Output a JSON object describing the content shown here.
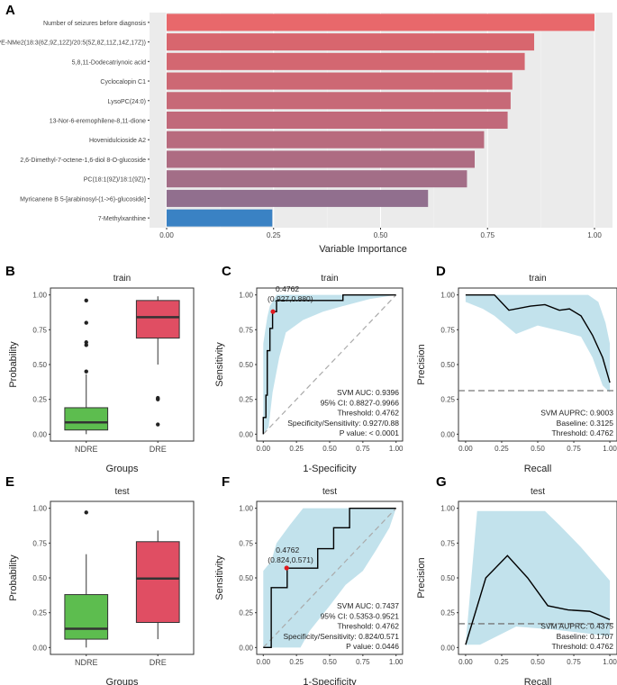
{
  "chart_data": [
    {
      "panel": "A",
      "type": "bar",
      "orientation": "horizontal",
      "title": "",
      "xlabel": "Variable Importance",
      "xlim": [
        0,
        1
      ],
      "xticks": [
        "0.00",
        "0.25",
        "0.50",
        "0.75",
        "1.00"
      ],
      "categories": [
        "Number of seizures before diagnosis",
        "PE-NMe2(18:3(6Z,9Z,12Z)/20:5(5Z,8Z,11Z,14Z,17Z))",
        "5,8,11-Dodecatriynoic acid",
        "Cyclocalopin C1",
        "LysoPC(24:0)",
        "13-Nor-6-eremophilene-8,11-dione",
        "Hovenidulcioside A2",
        "2,6-Dimethyl-7-octene-1,6-diol 8-O-glucoside",
        "PC(18:1(9Z)/18:1(9Z))",
        "Myricanene B 5-[arabinosyl-(1->6)-glucoside]",
        "7-Methylxanthine"
      ],
      "values": [
        1.0,
        0.859,
        0.837,
        0.808,
        0.804,
        0.797,
        0.742,
        0.72,
        0.702,
        0.611,
        0.247
      ],
      "colors": [
        "#e8686b",
        "#d8666e",
        "#d36771",
        "#cd6874",
        "#c76977",
        "#c1697a",
        "#b86b7e",
        "#ae6c82",
        "#a36e87",
        "#916f8e",
        "#3a82c4"
      ]
    },
    {
      "panel": "B",
      "type": "box",
      "title": "train",
      "xlabel": "Groups",
      "ylabel": "Probability",
      "ylim": [
        0,
        1
      ],
      "yticks": [
        "0.00",
        "0.25",
        "0.50",
        "0.75",
        "1.00"
      ],
      "groups": [
        {
          "name": "NDRE",
          "color": "#5dbd4f",
          "min": 0.0,
          "q1": 0.03,
          "median": 0.085,
          "q3": 0.19,
          "max": 0.43,
          "outliers": [
            0.45,
            0.64,
            0.66,
            0.8,
            0.96
          ]
        },
        {
          "name": "DRE",
          "color": "#e04e63",
          "min": 0.5,
          "q1": 0.69,
          "median": 0.84,
          "q3": 0.96,
          "max": 0.99,
          "outliers": [
            0.07,
            0.25,
            0.26
          ]
        }
      ]
    },
    {
      "panel": "C",
      "type": "roc",
      "title": "train",
      "xlabel": "1-Specificity",
      "ylabel": "Sensitivity",
      "xlim": [
        0,
        1
      ],
      "ylim": [
        0,
        1
      ],
      "ticks": [
        "0.00",
        "0.25",
        "0.50",
        "0.75",
        "1.00"
      ],
      "curve": [
        [
          0,
          0
        ],
        [
          0,
          0.12
        ],
        [
          0.02,
          0.12
        ],
        [
          0.02,
          0.28
        ],
        [
          0.03,
          0.28
        ],
        [
          0.03,
          0.6
        ],
        [
          0.05,
          0.6
        ],
        [
          0.05,
          0.76
        ],
        [
          0.07,
          0.76
        ],
        [
          0.07,
          0.88
        ],
        [
          0.1,
          0.88
        ],
        [
          0.1,
          0.96
        ],
        [
          0.6,
          0.96
        ],
        [
          0.6,
          1
        ],
        [
          1,
          1
        ]
      ],
      "band_upper": [
        [
          0,
          0.65
        ],
        [
          0.03,
          0.84
        ],
        [
          0.05,
          0.92
        ],
        [
          0.1,
          1
        ],
        [
          1,
          1
        ]
      ],
      "band_lower": [
        [
          0,
          0
        ],
        [
          0.04,
          0.05
        ],
        [
          0.07,
          0.3
        ],
        [
          0.12,
          0.55
        ],
        [
          0.17,
          0.73
        ],
        [
          0.3,
          0.82
        ],
        [
          0.45,
          0.88
        ],
        [
          0.6,
          0.92
        ],
        [
          0.8,
          0.97
        ],
        [
          1,
          1
        ]
      ],
      "cut_point": [
        0.073,
        0.88
      ],
      "cut_label_1": "0.4762",
      "cut_label_2": "(0.927,0.880)",
      "stats": [
        "SVM AUC: 0.9396",
        "95% CI: 0.8827-0.9966",
        "Threshold: 0.4762",
        "Specificity/Sensitivity: 0.927/0.88",
        "P value: < 0.0001"
      ]
    },
    {
      "panel": "D",
      "type": "pr",
      "title": "train",
      "xlabel": "Recall",
      "ylabel": "Precision",
      "xlim": [
        0,
        1
      ],
      "ylim": [
        0,
        1
      ],
      "ticks": [
        "0.00",
        "0.25",
        "0.50",
        "0.75",
        "1.00"
      ],
      "curve": [
        [
          0,
          1
        ],
        [
          0.2,
          1
        ],
        [
          0.3,
          0.89
        ],
        [
          0.45,
          0.92
        ],
        [
          0.55,
          0.93
        ],
        [
          0.65,
          0.89
        ],
        [
          0.72,
          0.9
        ],
        [
          0.8,
          0.85
        ],
        [
          0.88,
          0.71
        ],
        [
          0.95,
          0.55
        ],
        [
          1,
          0.37
        ]
      ],
      "band_upper": [
        [
          0,
          1
        ],
        [
          0.85,
          1
        ],
        [
          0.92,
          0.95
        ],
        [
          0.97,
          0.8
        ],
        [
          1,
          0.65
        ]
      ],
      "band_lower": [
        [
          1,
          0.3
        ],
        [
          0.95,
          0.35
        ],
        [
          0.88,
          0.55
        ],
        [
          0.8,
          0.7
        ],
        [
          0.7,
          0.73
        ],
        [
          0.5,
          0.78
        ],
        [
          0.35,
          0.72
        ],
        [
          0.2,
          0.85
        ],
        [
          0.12,
          0.9
        ],
        [
          0,
          0.95
        ]
      ],
      "baseline": 0.3125,
      "stats": [
        "SVM AUPRC: 0.9003",
        "Baseline: 0.3125",
        "Threshold: 0.4762"
      ]
    },
    {
      "panel": "E",
      "type": "box",
      "title": "test",
      "xlabel": "Groups",
      "ylabel": "Probability",
      "ylim": [
        0,
        1
      ],
      "yticks": [
        "0.00",
        "0.25",
        "0.50",
        "0.75",
        "1.00"
      ],
      "groups": [
        {
          "name": "NDRE",
          "color": "#5dbd4f",
          "min": 0.0,
          "q1": 0.06,
          "median": 0.135,
          "q3": 0.38,
          "max": 0.67,
          "outliers": [
            0.97
          ]
        },
        {
          "name": "DRE",
          "color": "#e04e63",
          "min": 0.06,
          "q1": 0.18,
          "median": 0.495,
          "q3": 0.76,
          "max": 0.84,
          "outliers": []
        }
      ]
    },
    {
      "panel": "F",
      "type": "roc",
      "title": "test",
      "xlabel": "1-Specificity",
      "ylabel": "Sensitivity",
      "xlim": [
        0,
        1
      ],
      "ylim": [
        0,
        1
      ],
      "ticks": [
        "0.00",
        "0.25",
        "0.50",
        "0.75",
        "1.00"
      ],
      "curve": [
        [
          0,
          0
        ],
        [
          0.06,
          0
        ],
        [
          0.06,
          0.43
        ],
        [
          0.18,
          0.43
        ],
        [
          0.18,
          0.57
        ],
        [
          0.41,
          0.57
        ],
        [
          0.41,
          0.71
        ],
        [
          0.53,
          0.71
        ],
        [
          0.53,
          0.86
        ],
        [
          0.65,
          0.86
        ],
        [
          0.65,
          1
        ],
        [
          1,
          1
        ]
      ],
      "band_upper": [
        [
          0,
          0.55
        ],
        [
          0.06,
          0.62
        ],
        [
          0.1,
          0.75
        ],
        [
          0.2,
          0.88
        ],
        [
          0.3,
          1
        ],
        [
          1,
          1
        ]
      ],
      "band_lower": [
        [
          0,
          0
        ],
        [
          0.28,
          0
        ],
        [
          0.35,
          0.12
        ],
        [
          0.5,
          0.3
        ],
        [
          0.62,
          0.45
        ],
        [
          0.75,
          0.55
        ],
        [
          0.85,
          0.7
        ],
        [
          0.95,
          0.86
        ],
        [
          1,
          1
        ]
      ],
      "cut_point": [
        0.176,
        0.571
      ],
      "cut_label_1": "0.4762",
      "cut_label_2": "(0.824,0.571)",
      "stats": [
        "SVM AUC: 0.7437",
        "95% CI: 0.5353-0.9521",
        "Threshold: 0.4762",
        "Specificity/Sensitivity: 0.824/0.571",
        "P value: 0.0446"
      ]
    },
    {
      "panel": "G",
      "type": "pr",
      "title": "test",
      "xlabel": "Recall",
      "ylabel": "Precision",
      "xlim": [
        0,
        1
      ],
      "ylim": [
        0,
        1
      ],
      "ticks": [
        "0.00",
        "0.25",
        "0.50",
        "0.75",
        "1.00"
      ],
      "curve": [
        [
          0,
          0.02
        ],
        [
          0.14,
          0.5
        ],
        [
          0.29,
          0.66
        ],
        [
          0.43,
          0.5
        ],
        [
          0.57,
          0.3
        ],
        [
          0.71,
          0.27
        ],
        [
          0.86,
          0.26
        ],
        [
          1,
          0.2
        ]
      ],
      "band_upper": [
        [
          0,
          0.02
        ],
        [
          0.08,
          0.98
        ],
        [
          0.55,
          0.98
        ],
        [
          0.65,
          0.88
        ],
        [
          0.8,
          0.72
        ],
        [
          0.9,
          0.6
        ],
        [
          1,
          0.48
        ]
      ],
      "band_lower": [
        [
          1,
          0.08
        ],
        [
          0.85,
          0.1
        ],
        [
          0.6,
          0.13
        ],
        [
          0.35,
          0.15
        ],
        [
          0.1,
          0.02
        ],
        [
          0,
          0.02
        ]
      ],
      "baseline": 0.1707,
      "stats": [
        "SVM AUPRC: 0.4375",
        "Baseline: 0.1707",
        "Threshold: 0.4762"
      ]
    }
  ],
  "colors": {
    "band": "#add8e6",
    "curve": "#000000",
    "cut_point": "#e0191e",
    "diagonal": "#aaaaaa",
    "baseline": "#777777",
    "axis": "#333333",
    "panel_bg": "#ffffff",
    "grid_bg_A": "#ebebeb"
  }
}
